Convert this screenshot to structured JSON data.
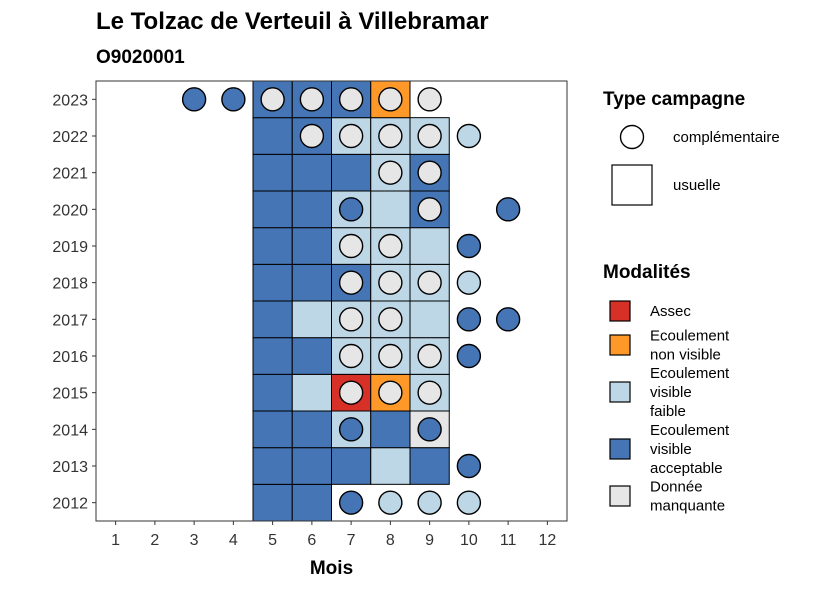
{
  "chart_data": {
    "type": "heatmap",
    "title": "Le Tolzac de Verteuil à Villebramar",
    "subtitle": "O9020001",
    "xlabel": "Mois",
    "ylabel": "",
    "x_ticks": [
      "1",
      "2",
      "3",
      "4",
      "5",
      "6",
      "7",
      "8",
      "9",
      "10",
      "11",
      "12"
    ],
    "y_ticks": [
      "2012",
      "2013",
      "2014",
      "2015",
      "2016",
      "2017",
      "2018",
      "2019",
      "2020",
      "2021",
      "2022",
      "2023"
    ],
    "xlim": [
      0.5,
      12.5
    ],
    "ylim": [
      2011.5,
      2023.5
    ],
    "grid": false,
    "legend_position": "right",
    "colors": {
      "Assec": "#d73027",
      "Ecoulement non visible": "#fe9929",
      "Ecoulement visible faible": "#bdd7e7",
      "Ecoulement visible acceptable": "#4575b4",
      "Donnée manquante": "#e6e6e6"
    },
    "legend_campagne": {
      "title": "Type campagne",
      "items": [
        {
          "key": "complementaire",
          "label": "complémentaire",
          "shape": "circle"
        },
        {
          "key": "usuelle",
          "label": "usuelle",
          "shape": "square"
        }
      ]
    },
    "legend_modalites": {
      "title": "Modalités",
      "items": [
        {
          "key": "Assec",
          "lines": [
            "Assec"
          ]
        },
        {
          "key": "Ecoulement non visible",
          "lines": [
            "Ecoulement",
            "non visible"
          ]
        },
        {
          "key": "Ecoulement visible faible",
          "lines": [
            "Ecoulement",
            "visible",
            "faible"
          ]
        },
        {
          "key": "Ecoulement visible acceptable",
          "lines": [
            "Ecoulement",
            "visible",
            "acceptable"
          ]
        },
        {
          "key": "Donnée manquante",
          "lines": [
            "Donnée",
            "manquante"
          ]
        }
      ]
    },
    "usuelle": [
      {
        "year": 2012,
        "month": 5,
        "value": "Ecoulement visible acceptable"
      },
      {
        "year": 2012,
        "month": 6,
        "value": "Ecoulement visible acceptable"
      },
      {
        "year": 2013,
        "month": 5,
        "value": "Ecoulement visible acceptable"
      },
      {
        "year": 2013,
        "month": 6,
        "value": "Ecoulement visible acceptable"
      },
      {
        "year": 2013,
        "month": 7,
        "value": "Ecoulement visible acceptable"
      },
      {
        "year": 2013,
        "month": 8,
        "value": "Ecoulement visible faible"
      },
      {
        "year": 2013,
        "month": 9,
        "value": "Ecoulement visible acceptable"
      },
      {
        "year": 2014,
        "month": 5,
        "value": "Ecoulement visible acceptable"
      },
      {
        "year": 2014,
        "month": 6,
        "value": "Ecoulement visible acceptable"
      },
      {
        "year": 2014,
        "month": 7,
        "value": "Ecoulement visible faible"
      },
      {
        "year": 2014,
        "month": 8,
        "value": "Ecoulement visible acceptable"
      },
      {
        "year": 2014,
        "month": 9,
        "value": "Donnée manquante"
      },
      {
        "year": 2015,
        "month": 5,
        "value": "Ecoulement visible acceptable"
      },
      {
        "year": 2015,
        "month": 6,
        "value": "Ecoulement visible faible"
      },
      {
        "year": 2015,
        "month": 7,
        "value": "Assec"
      },
      {
        "year": 2015,
        "month": 8,
        "value": "Ecoulement non visible"
      },
      {
        "year": 2015,
        "month": 9,
        "value": "Ecoulement visible faible"
      },
      {
        "year": 2016,
        "month": 5,
        "value": "Ecoulement visible acceptable"
      },
      {
        "year": 2016,
        "month": 6,
        "value": "Ecoulement visible acceptable"
      },
      {
        "year": 2016,
        "month": 7,
        "value": "Ecoulement visible faible"
      },
      {
        "year": 2016,
        "month": 8,
        "value": "Ecoulement visible faible"
      },
      {
        "year": 2016,
        "month": 9,
        "value": "Ecoulement visible faible"
      },
      {
        "year": 2017,
        "month": 5,
        "value": "Ecoulement visible acceptable"
      },
      {
        "year": 2017,
        "month": 6,
        "value": "Ecoulement visible faible"
      },
      {
        "year": 2017,
        "month": 7,
        "value": "Ecoulement visible faible"
      },
      {
        "year": 2017,
        "month": 8,
        "value": "Ecoulement visible faible"
      },
      {
        "year": 2017,
        "month": 9,
        "value": "Ecoulement visible faible"
      },
      {
        "year": 2018,
        "month": 5,
        "value": "Ecoulement visible acceptable"
      },
      {
        "year": 2018,
        "month": 6,
        "value": "Ecoulement visible acceptable"
      },
      {
        "year": 2018,
        "month": 7,
        "value": "Ecoulement visible acceptable"
      },
      {
        "year": 2018,
        "month": 8,
        "value": "Ecoulement visible faible"
      },
      {
        "year": 2018,
        "month": 9,
        "value": "Ecoulement visible faible"
      },
      {
        "year": 2019,
        "month": 5,
        "value": "Ecoulement visible acceptable"
      },
      {
        "year": 2019,
        "month": 6,
        "value": "Ecoulement visible acceptable"
      },
      {
        "year": 2019,
        "month": 7,
        "value": "Ecoulement visible faible"
      },
      {
        "year": 2019,
        "month": 8,
        "value": "Ecoulement visible faible"
      },
      {
        "year": 2019,
        "month": 9,
        "value": "Ecoulement visible faible"
      },
      {
        "year": 2020,
        "month": 5,
        "value": "Ecoulement visible acceptable"
      },
      {
        "year": 2020,
        "month": 6,
        "value": "Ecoulement visible acceptable"
      },
      {
        "year": 2020,
        "month": 7,
        "value": "Ecoulement visible faible"
      },
      {
        "year": 2020,
        "month": 8,
        "value": "Ecoulement visible faible"
      },
      {
        "year": 2020,
        "month": 9,
        "value": "Ecoulement visible acceptable"
      },
      {
        "year": 2021,
        "month": 5,
        "value": "Ecoulement visible acceptable"
      },
      {
        "year": 2021,
        "month": 6,
        "value": "Ecoulement visible acceptable"
      },
      {
        "year": 2021,
        "month": 7,
        "value": "Ecoulement visible acceptable"
      },
      {
        "year": 2021,
        "month": 8,
        "value": "Ecoulement visible faible"
      },
      {
        "year": 2021,
        "month": 9,
        "value": "Ecoulement visible acceptable"
      },
      {
        "year": 2022,
        "month": 5,
        "value": "Ecoulement visible acceptable"
      },
      {
        "year": 2022,
        "month": 6,
        "value": "Ecoulement visible acceptable"
      },
      {
        "year": 2022,
        "month": 7,
        "value": "Ecoulement visible faible"
      },
      {
        "year": 2022,
        "month": 8,
        "value": "Ecoulement visible faible"
      },
      {
        "year": 2022,
        "month": 9,
        "value": "Ecoulement visible faible"
      },
      {
        "year": 2023,
        "month": 5,
        "value": "Ecoulement visible acceptable"
      },
      {
        "year": 2023,
        "month": 6,
        "value": "Ecoulement visible acceptable"
      },
      {
        "year": 2023,
        "month": 7,
        "value": "Ecoulement visible acceptable"
      },
      {
        "year": 2023,
        "month": 8,
        "value": "Ecoulement non visible"
      }
    ],
    "complementaire": [
      {
        "year": 2012,
        "month": 7,
        "value": "Ecoulement visible acceptable"
      },
      {
        "year": 2012,
        "month": 8,
        "value": "Ecoulement visible faible"
      },
      {
        "year": 2012,
        "month": 9,
        "value": "Ecoulement visible faible"
      },
      {
        "year": 2012,
        "month": 10,
        "value": "Ecoulement visible faible"
      },
      {
        "year": 2013,
        "month": 10,
        "value": "Ecoulement visible acceptable"
      },
      {
        "year": 2014,
        "month": 7,
        "value": "Ecoulement visible acceptable"
      },
      {
        "year": 2014,
        "month": 9,
        "value": "Ecoulement visible acceptable"
      },
      {
        "year": 2015,
        "month": 7,
        "value": "Donnée manquante"
      },
      {
        "year": 2015,
        "month": 8,
        "value": "Donnée manquante"
      },
      {
        "year": 2015,
        "month": 9,
        "value": "Donnée manquante"
      },
      {
        "year": 2016,
        "month": 7,
        "value": "Donnée manquante"
      },
      {
        "year": 2016,
        "month": 8,
        "value": "Donnée manquante"
      },
      {
        "year": 2016,
        "month": 9,
        "value": "Donnée manquante"
      },
      {
        "year": 2016,
        "month": 10,
        "value": "Ecoulement visible acceptable"
      },
      {
        "year": 2017,
        "month": 7,
        "value": "Donnée manquante"
      },
      {
        "year": 2017,
        "month": 8,
        "value": "Donnée manquante"
      },
      {
        "year": 2017,
        "month": 10,
        "value": "Ecoulement visible acceptable"
      },
      {
        "year": 2017,
        "month": 11,
        "value": "Ecoulement visible acceptable"
      },
      {
        "year": 2018,
        "month": 7,
        "value": "Donnée manquante"
      },
      {
        "year": 2018,
        "month": 8,
        "value": "Donnée manquante"
      },
      {
        "year": 2018,
        "month": 9,
        "value": "Donnée manquante"
      },
      {
        "year": 2018,
        "month": 10,
        "value": "Ecoulement visible faible"
      },
      {
        "year": 2019,
        "month": 7,
        "value": "Donnée manquante"
      },
      {
        "year": 2019,
        "month": 8,
        "value": "Donnée manquante"
      },
      {
        "year": 2019,
        "month": 10,
        "value": "Ecoulement visible acceptable"
      },
      {
        "year": 2020,
        "month": 7,
        "value": "Ecoulement visible acceptable"
      },
      {
        "year": 2020,
        "month": 9,
        "value": "Donnée manquante"
      },
      {
        "year": 2020,
        "month": 11,
        "value": "Ecoulement visible acceptable"
      },
      {
        "year": 2021,
        "month": 8,
        "value": "Donnée manquante"
      },
      {
        "year": 2021,
        "month": 9,
        "value": "Donnée manquante"
      },
      {
        "year": 2022,
        "month": 6,
        "value": "Donnée manquante"
      },
      {
        "year": 2022,
        "month": 7,
        "value": "Donnée manquante"
      },
      {
        "year": 2022,
        "month": 8,
        "value": "Donnée manquante"
      },
      {
        "year": 2022,
        "month": 9,
        "value": "Donnée manquante"
      },
      {
        "year": 2022,
        "month": 10,
        "value": "Ecoulement visible faible"
      },
      {
        "year": 2023,
        "month": 3,
        "value": "Ecoulement visible acceptable"
      },
      {
        "year": 2023,
        "month": 4,
        "value": "Ecoulement visible acceptable"
      },
      {
        "year": 2023,
        "month": 5,
        "value": "Donnée manquante"
      },
      {
        "year": 2023,
        "month": 6,
        "value": "Donnée manquante"
      },
      {
        "year": 2023,
        "month": 7,
        "value": "Donnée manquante"
      },
      {
        "year": 2023,
        "month": 8,
        "value": "Donnée manquante"
      },
      {
        "year": 2023,
        "month": 9,
        "value": "Donnée manquante"
      }
    ]
  }
}
